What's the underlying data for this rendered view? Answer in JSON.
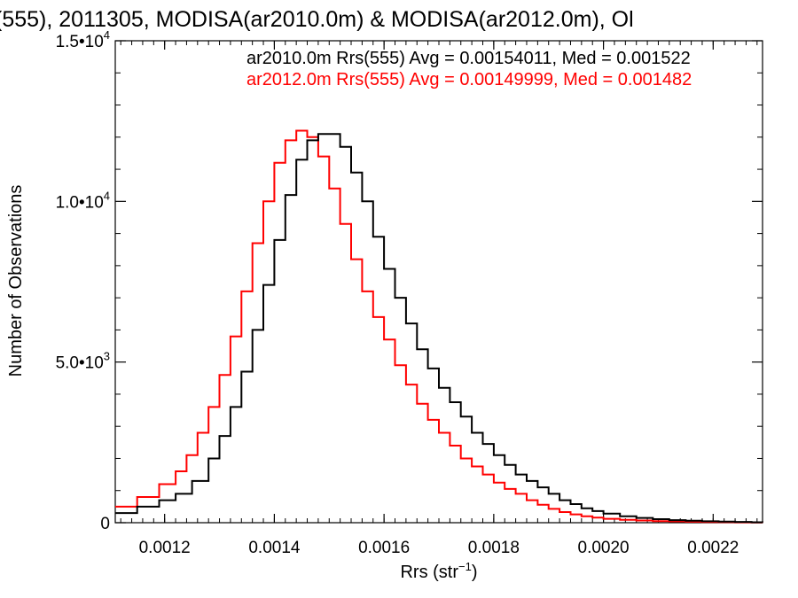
{
  "title_text": "(555), 2011305, MODISA(ar2010.0m) & MODISA(ar2012.0m), Ol",
  "chart_data": {
    "type": "line",
    "step": true,
    "xlabel_main": "Rrs (str",
    "xlabel_sup": "−1",
    "xlabel_close": ")",
    "ylabel": "Number of Observations",
    "xlim": [
      0.00111,
      0.00229
    ],
    "ylim": [
      0,
      15000
    ],
    "x_ticks": [
      {
        "value": 0.0012,
        "label": "0.0012"
      },
      {
        "value": 0.0014,
        "label": "0.0014"
      },
      {
        "value": 0.0016,
        "label": "0.0016"
      },
      {
        "value": 0.0018,
        "label": "0.0018"
      },
      {
        "value": 0.002,
        "label": "0.0020"
      },
      {
        "value": 0.0022,
        "label": "0.0022"
      }
    ],
    "y_ticks": [
      {
        "value": 0,
        "mantissa": "0",
        "exp": ""
      },
      {
        "value": 5000,
        "mantissa": "5.0•10",
        "exp": "3"
      },
      {
        "value": 10000,
        "mantissa": "1.0•10",
        "exp": "4"
      },
      {
        "value": 15000,
        "mantissa": "1.5•10",
        "exp": "4"
      }
    ],
    "annotations": [
      {
        "text": "ar2010.0m Rrs(555) Avg = 0.00154011, Med = 0.001522",
        "color": "#000000"
      },
      {
        "text": "ar2012.0m Rrs(555) Avg = 0.00149999, Med = 0.001482",
        "color": "#ff0000"
      }
    ],
    "series": [
      {
        "color": "#000000",
        "x": [
          0.00111,
          0.00115,
          0.00119,
          0.00122,
          0.00125,
          0.00128,
          0.0013,
          0.00132,
          0.00134,
          0.00136,
          0.00138,
          0.0014,
          0.00142,
          0.00144,
          0.00146,
          0.00148,
          0.0015,
          0.00152,
          0.00154,
          0.00156,
          0.00158,
          0.0016,
          0.00162,
          0.00164,
          0.00166,
          0.00168,
          0.0017,
          0.00172,
          0.00174,
          0.00176,
          0.00178,
          0.0018,
          0.00182,
          0.00184,
          0.00186,
          0.00188,
          0.0019,
          0.00192,
          0.00194,
          0.00196,
          0.00198,
          0.002,
          0.00203,
          0.00206,
          0.00209,
          0.00212,
          0.00215,
          0.00218,
          0.00221,
          0.00224,
          0.00227,
          0.00229
        ],
        "y": [
          300,
          500,
          700,
          900,
          1300,
          2000,
          2700,
          3600,
          4700,
          6000,
          7400,
          8800,
          10200,
          11300,
          11900,
          12100,
          12100,
          11700,
          10900,
          10000,
          8900,
          7900,
          7000,
          6200,
          5400,
          4800,
          4200,
          3750,
          3300,
          2800,
          2450,
          2100,
          1800,
          1500,
          1300,
          1100,
          900,
          700,
          580,
          450,
          360,
          280,
          200,
          150,
          110,
          80,
          60,
          45,
          35,
          25,
          15,
          10
        ]
      },
      {
        "color": "#ff0000",
        "x": [
          0.00111,
          0.00115,
          0.00119,
          0.00122,
          0.00124,
          0.00126,
          0.00128,
          0.0013,
          0.00132,
          0.00134,
          0.00136,
          0.00138,
          0.0014,
          0.00142,
          0.00144,
          0.00146,
          0.00148,
          0.0015,
          0.00152,
          0.00154,
          0.00156,
          0.00158,
          0.0016,
          0.00162,
          0.00164,
          0.00166,
          0.00168,
          0.0017,
          0.00172,
          0.00174,
          0.00176,
          0.00178,
          0.0018,
          0.00182,
          0.00184,
          0.00186,
          0.00188,
          0.0019,
          0.00192,
          0.00194,
          0.00196,
          0.00198,
          0.002,
          0.00203,
          0.00206,
          0.00209,
          0.00212,
          0.00215,
          0.00218,
          0.00221,
          0.00224,
          0.00227,
          0.00229
        ],
        "y": [
          500,
          800,
          1200,
          1600,
          2100,
          2800,
          3600,
          4600,
          5800,
          7200,
          8700,
          10000,
          11200,
          11900,
          12200,
          12000,
          11400,
          10400,
          9300,
          8200,
          7200,
          6400,
          5700,
          4900,
          4300,
          3700,
          3200,
          2800,
          2400,
          2000,
          1750,
          1500,
          1250,
          1050,
          900,
          700,
          560,
          430,
          330,
          260,
          200,
          160,
          120,
          90,
          70,
          50,
          40,
          30,
          22,
          16,
          12,
          8,
          6
        ]
      }
    ]
  }
}
